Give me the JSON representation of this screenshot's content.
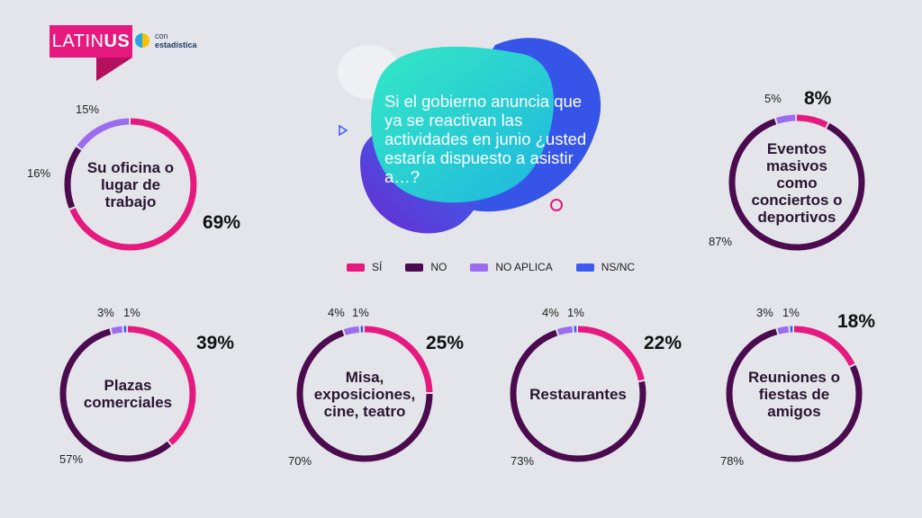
{
  "brand": {
    "logo_light": "LATIN",
    "logo_bold": "US",
    "partner_top": "con",
    "partner_bottom": "estadística"
  },
  "question": "Si el gobierno anuncia que ya se reactivan las actividades en junio ¿usted estaría dispuesto a asistir a…?",
  "colors": {
    "si": "#e6197e",
    "no": "#4b0b4e",
    "no_aplica": "#9b6cf0",
    "ns_nc": "#3d5af1"
  },
  "legend": [
    {
      "label": "SÍ",
      "color": "#e6197e"
    },
    {
      "label": "NO",
      "color": "#4b0b4e"
    },
    {
      "label": "NO APLICA",
      "color": "#9b6cf0"
    },
    {
      "label": "NS/NC",
      "color": "#3d5af1"
    }
  ],
  "chart_data": [
    {
      "type": "pie",
      "title": "Su oficina o lugar de trabajo",
      "categories": [
        "SÍ",
        "NO",
        "NO APLICA"
      ],
      "values": [
        69,
        16,
        15
      ],
      "labels": {
        "si": "69%",
        "no": "16%",
        "no_aplica": "15%"
      }
    },
    {
      "type": "pie",
      "title": "Eventos masivos como conciertos o deportivos",
      "categories": [
        "SÍ",
        "NO",
        "NO APLICA"
      ],
      "values": [
        8,
        87,
        5
      ],
      "labels": {
        "si": "8%",
        "no": "87%",
        "no_aplica": "5%"
      }
    },
    {
      "type": "pie",
      "title": "Plazas comerciales",
      "categories": [
        "SÍ",
        "NO",
        "NO APLICA",
        "NS/NC"
      ],
      "values": [
        39,
        57,
        3,
        1
      ],
      "labels": {
        "si": "39%",
        "no": "57%",
        "no_aplica": "3%",
        "ns_nc": "1%"
      }
    },
    {
      "type": "pie",
      "title": "Misa, exposiciones, cine, teatro",
      "categories": [
        "SÍ",
        "NO",
        "NO APLICA",
        "NS/NC"
      ],
      "values": [
        25,
        70,
        4,
        1
      ],
      "labels": {
        "si": "25%",
        "no": "70%",
        "no_aplica": "4%",
        "ns_nc": "1%"
      }
    },
    {
      "type": "pie",
      "title": "Restaurantes",
      "categories": [
        "SÍ",
        "NO",
        "NO APLICA",
        "NS/NC"
      ],
      "values": [
        22,
        73,
        4,
        1
      ],
      "labels": {
        "si": "22%",
        "no": "73%",
        "no_aplica": "4%",
        "ns_nc": "1%"
      }
    },
    {
      "type": "pie",
      "title": "Reuniones o fiestas de amigos",
      "categories": [
        "SÍ",
        "NO",
        "NO APLICA",
        "NS/NC"
      ],
      "values": [
        18,
        78,
        3,
        1
      ],
      "labels": {
        "si": "18%",
        "no": "78%",
        "no_aplica": "3%",
        "ns_nc": "1%"
      }
    }
  ]
}
